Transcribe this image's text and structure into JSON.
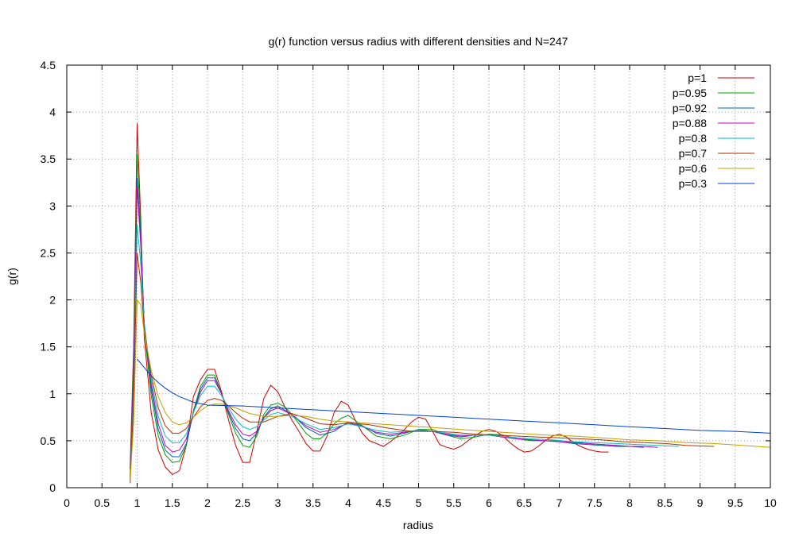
{
  "chart_data": {
    "type": "line",
    "title": "g(r) function versus radius with different densities and N=247",
    "xlabel": "radius",
    "ylabel": "g(r)",
    "xlim": [
      0,
      10
    ],
    "ylim": [
      0,
      4.5
    ],
    "xticks": [
      0,
      0.5,
      1,
      1.5,
      2,
      2.5,
      3,
      3.5,
      4,
      4.5,
      5,
      5.5,
      6,
      6.5,
      7,
      7.5,
      8,
      8.5,
      9,
      9.5,
      10
    ],
    "xtick_labels": [
      "0",
      "0.5",
      "1",
      "1.5",
      "2",
      "2.5",
      "3",
      "3.5",
      "4",
      "4.5",
      "5",
      "5.5",
      "6",
      "6.5",
      "7",
      "7.5",
      "8",
      "8.5",
      "9",
      "9.5",
      "10"
    ],
    "yticks": [
      0,
      0.5,
      1,
      1.5,
      2,
      2.5,
      3,
      3.5,
      4,
      4.5
    ],
    "ytick_labels": [
      "0",
      "0.5",
      "1",
      "1.5",
      "2",
      "2.5",
      "3",
      "3.5",
      "4",
      "4.5"
    ],
    "grid": true,
    "legend_position": "top-right",
    "series": [
      {
        "name": "p=1",
        "color": "#cc0000",
        "x": [
          0.9,
          0.95,
          1.0,
          1.05,
          1.1,
          1.2,
          1.3,
          1.4,
          1.5,
          1.6,
          1.7,
          1.8,
          1.9,
          2.0,
          2.1,
          2.2,
          2.3,
          2.4,
          2.5,
          2.6,
          2.7,
          2.8,
          2.9,
          3.0,
          3.1,
          3.2,
          3.3,
          3.4,
          3.5,
          3.6,
          3.7,
          3.8,
          3.9,
          4.0,
          4.1,
          4.2,
          4.3,
          4.4,
          4.5,
          4.6,
          4.7,
          4.8,
          4.9,
          5.0,
          5.1,
          5.2,
          5.3,
          5.4,
          5.5,
          5.6,
          5.7,
          5.8,
          5.9,
          6.0,
          6.1,
          6.2,
          6.3,
          6.4,
          6.5,
          6.6,
          6.7,
          6.8,
          6.9,
          7.0,
          7.1,
          7.2,
          7.3,
          7.4,
          7.5,
          7.6,
          7.7
        ],
        "y": [
          0.2,
          1.5,
          3.88,
          2.9,
          1.6,
          0.8,
          0.4,
          0.22,
          0.14,
          0.18,
          0.45,
          0.97,
          1.15,
          1.26,
          1.26,
          1.02,
          0.72,
          0.45,
          0.27,
          0.27,
          0.6,
          0.95,
          1.09,
          1.02,
          0.86,
          0.72,
          0.6,
          0.47,
          0.39,
          0.39,
          0.55,
          0.8,
          0.92,
          0.88,
          0.72,
          0.58,
          0.5,
          0.47,
          0.44,
          0.49,
          0.55,
          0.62,
          0.7,
          0.75,
          0.73,
          0.6,
          0.46,
          0.43,
          0.41,
          0.44,
          0.5,
          0.55,
          0.6,
          0.62,
          0.6,
          0.55,
          0.48,
          0.42,
          0.38,
          0.39,
          0.44,
          0.5,
          0.55,
          0.57,
          0.54,
          0.48,
          0.44,
          0.41,
          0.39,
          0.38,
          0.38
        ]
      },
      {
        "name": "p=0.95",
        "color": "#00a000",
        "x": [
          0.9,
          0.95,
          1.0,
          1.05,
          1.1,
          1.2,
          1.3,
          1.4,
          1.5,
          1.6,
          1.7,
          1.8,
          1.9,
          2.0,
          2.1,
          2.2,
          2.3,
          2.4,
          2.5,
          2.6,
          2.7,
          2.8,
          2.9,
          3.0,
          3.1,
          3.2,
          3.3,
          3.4,
          3.5,
          3.6,
          3.7,
          3.8,
          3.9,
          4.0,
          4.2,
          4.4,
          4.6,
          4.8,
          5.0,
          5.2,
          5.4,
          5.6,
          5.8,
          6.0,
          6.2,
          6.4,
          6.6,
          6.8,
          7.0,
          7.2,
          7.4,
          7.6,
          7.8,
          8.0
        ],
        "y": [
          0.1,
          1.4,
          3.55,
          2.8,
          1.7,
          0.98,
          0.55,
          0.35,
          0.27,
          0.28,
          0.45,
          0.82,
          1.08,
          1.2,
          1.2,
          1.0,
          0.78,
          0.58,
          0.45,
          0.43,
          0.55,
          0.78,
          0.88,
          0.9,
          0.86,
          0.78,
          0.68,
          0.58,
          0.52,
          0.52,
          0.58,
          0.68,
          0.74,
          0.77,
          0.66,
          0.55,
          0.52,
          0.56,
          0.62,
          0.62,
          0.56,
          0.52,
          0.54,
          0.57,
          0.56,
          0.52,
          0.5,
          0.5,
          0.5,
          0.49,
          0.47,
          0.46,
          0.45,
          0.44
        ]
      },
      {
        "name": "p=0.92",
        "color": "#0060ad",
        "x": [
          0.9,
          0.95,
          1.0,
          1.05,
          1.1,
          1.2,
          1.3,
          1.4,
          1.5,
          1.6,
          1.7,
          1.8,
          1.9,
          2.0,
          2.1,
          2.2,
          2.3,
          2.4,
          2.5,
          2.6,
          2.7,
          2.8,
          2.9,
          3.0,
          3.2,
          3.4,
          3.6,
          3.8,
          4.0,
          4.2,
          4.4,
          4.6,
          4.8,
          5.0,
          5.2,
          5.4,
          5.6,
          5.8,
          6.0,
          6.2,
          6.4,
          6.6,
          6.8,
          7.0,
          7.2,
          7.4,
          7.6,
          7.8,
          8.0,
          8.2
        ],
        "y": [
          0.05,
          1.3,
          3.3,
          2.7,
          1.75,
          1.05,
          0.62,
          0.4,
          0.33,
          0.33,
          0.47,
          0.8,
          1.05,
          1.17,
          1.17,
          1.0,
          0.8,
          0.63,
          0.52,
          0.5,
          0.58,
          0.75,
          0.84,
          0.87,
          0.78,
          0.64,
          0.56,
          0.6,
          0.7,
          0.66,
          0.58,
          0.55,
          0.58,
          0.62,
          0.6,
          0.56,
          0.54,
          0.56,
          0.56,
          0.54,
          0.52,
          0.51,
          0.5,
          0.49,
          0.47,
          0.46,
          0.45,
          0.44,
          0.44,
          0.43
        ]
      },
      {
        "name": "p=0.88",
        "color": "#c000c0",
        "x": [
          0.9,
          0.95,
          1.0,
          1.05,
          1.1,
          1.2,
          1.3,
          1.4,
          1.5,
          1.6,
          1.7,
          1.8,
          1.9,
          2.0,
          2.1,
          2.2,
          2.3,
          2.4,
          2.5,
          2.6,
          2.7,
          2.8,
          2.9,
          3.0,
          3.2,
          3.4,
          3.6,
          3.8,
          4.0,
          4.2,
          4.4,
          4.6,
          4.8,
          5.0,
          5.2,
          5.4,
          5.6,
          5.8,
          6.0,
          6.2,
          6.4,
          6.6,
          6.8,
          7.0,
          7.2,
          7.4,
          7.6,
          7.8,
          8.0,
          8.2,
          8.4
        ],
        "y": [
          0.05,
          1.2,
          3.2,
          2.6,
          1.75,
          1.1,
          0.68,
          0.45,
          0.38,
          0.4,
          0.52,
          0.8,
          1.02,
          1.14,
          1.14,
          1.0,
          0.82,
          0.67,
          0.57,
          0.55,
          0.6,
          0.74,
          0.82,
          0.85,
          0.78,
          0.66,
          0.59,
          0.62,
          0.69,
          0.65,
          0.59,
          0.57,
          0.59,
          0.61,
          0.6,
          0.57,
          0.55,
          0.56,
          0.56,
          0.54,
          0.52,
          0.51,
          0.5,
          0.49,
          0.48,
          0.47,
          0.46,
          0.45,
          0.44,
          0.44,
          0.43
        ]
      },
      {
        "name": "p=0.8",
        "color": "#00c0c0",
        "x": [
          0.9,
          0.95,
          1.0,
          1.05,
          1.1,
          1.2,
          1.3,
          1.4,
          1.5,
          1.6,
          1.7,
          1.8,
          1.9,
          2.0,
          2.1,
          2.2,
          2.3,
          2.4,
          2.5,
          2.6,
          2.7,
          2.8,
          2.9,
          3.0,
          3.2,
          3.4,
          3.6,
          3.8,
          4.0,
          4.2,
          4.4,
          4.6,
          4.8,
          5.0,
          5.2,
          5.4,
          5.6,
          5.8,
          6.0,
          6.3,
          6.6,
          6.9,
          7.2,
          7.5,
          7.8,
          8.1,
          8.4,
          8.7
        ],
        "y": [
          0.05,
          1.0,
          2.8,
          2.4,
          1.75,
          1.15,
          0.76,
          0.55,
          0.48,
          0.48,
          0.57,
          0.8,
          0.98,
          1.08,
          1.08,
          0.98,
          0.85,
          0.73,
          0.65,
          0.62,
          0.65,
          0.72,
          0.78,
          0.8,
          0.76,
          0.68,
          0.62,
          0.64,
          0.68,
          0.65,
          0.61,
          0.59,
          0.6,
          0.61,
          0.6,
          0.58,
          0.56,
          0.56,
          0.56,
          0.54,
          0.52,
          0.51,
          0.49,
          0.48,
          0.47,
          0.46,
          0.45,
          0.44
        ]
      },
      {
        "name": "p=0.7",
        "color": "#b03000",
        "x": [
          0.9,
          0.95,
          1.0,
          1.05,
          1.1,
          1.2,
          1.3,
          1.4,
          1.5,
          1.6,
          1.7,
          1.8,
          1.9,
          2.0,
          2.1,
          2.2,
          2.3,
          2.4,
          2.5,
          2.6,
          2.8,
          3.0,
          3.2,
          3.4,
          3.6,
          3.8,
          4.0,
          4.3,
          4.6,
          4.9,
          5.2,
          5.5,
          5.8,
          6.1,
          6.4,
          6.7,
          7.0,
          7.3,
          7.6,
          7.9,
          8.2,
          8.5,
          8.8,
          9.2
        ],
        "y": [
          0.05,
          0.9,
          2.5,
          2.2,
          1.7,
          1.2,
          0.85,
          0.66,
          0.58,
          0.58,
          0.63,
          0.75,
          0.86,
          0.93,
          0.95,
          0.93,
          0.87,
          0.8,
          0.74,
          0.7,
          0.7,
          0.76,
          0.79,
          0.74,
          0.68,
          0.67,
          0.69,
          0.67,
          0.63,
          0.6,
          0.6,
          0.59,
          0.57,
          0.56,
          0.55,
          0.54,
          0.53,
          0.52,
          0.51,
          0.49,
          0.48,
          0.47,
          0.45,
          0.44
        ]
      },
      {
        "name": "p=0.6",
        "color": "#c0a000",
        "x": [
          0.9,
          0.95,
          1.0,
          1.05,
          1.1,
          1.2,
          1.3,
          1.4,
          1.5,
          1.6,
          1.7,
          1.8,
          1.9,
          2.0,
          2.1,
          2.2,
          2.4,
          2.6,
          2.8,
          3.0,
          3.2,
          3.4,
          3.6,
          3.8,
          4.0,
          4.4,
          4.8,
          5.2,
          5.6,
          6.0,
          6.4,
          6.8,
          7.2,
          7.6,
          8.0,
          8.4,
          8.8,
          9.2,
          9.6,
          10.0
        ],
        "y": [
          0.05,
          0.7,
          2.0,
          1.95,
          1.65,
          1.25,
          0.97,
          0.8,
          0.7,
          0.67,
          0.69,
          0.75,
          0.82,
          0.87,
          0.89,
          0.89,
          0.85,
          0.79,
          0.76,
          0.76,
          0.77,
          0.76,
          0.73,
          0.71,
          0.7,
          0.68,
          0.66,
          0.64,
          0.62,
          0.6,
          0.58,
          0.56,
          0.55,
          0.53,
          0.51,
          0.5,
          0.48,
          0.47,
          0.45,
          0.43
        ]
      },
      {
        "name": "p=0.3",
        "color": "#0040d0",
        "x": [
          1.0,
          1.1,
          1.2,
          1.3,
          1.4,
          1.5,
          1.6,
          1.8,
          2.0,
          2.5,
          3.0,
          3.5,
          4.0,
          4.5,
          5.0,
          5.5,
          6.0,
          6.5,
          7.0,
          7.5,
          8.0,
          8.5,
          9.0,
          9.5,
          10.0
        ],
        "y": [
          1.37,
          1.28,
          1.19,
          1.12,
          1.06,
          1.01,
          0.97,
          0.91,
          0.88,
          0.87,
          0.85,
          0.83,
          0.81,
          0.79,
          0.77,
          0.75,
          0.73,
          0.71,
          0.69,
          0.67,
          0.65,
          0.63,
          0.61,
          0.6,
          0.58
        ]
      }
    ]
  }
}
